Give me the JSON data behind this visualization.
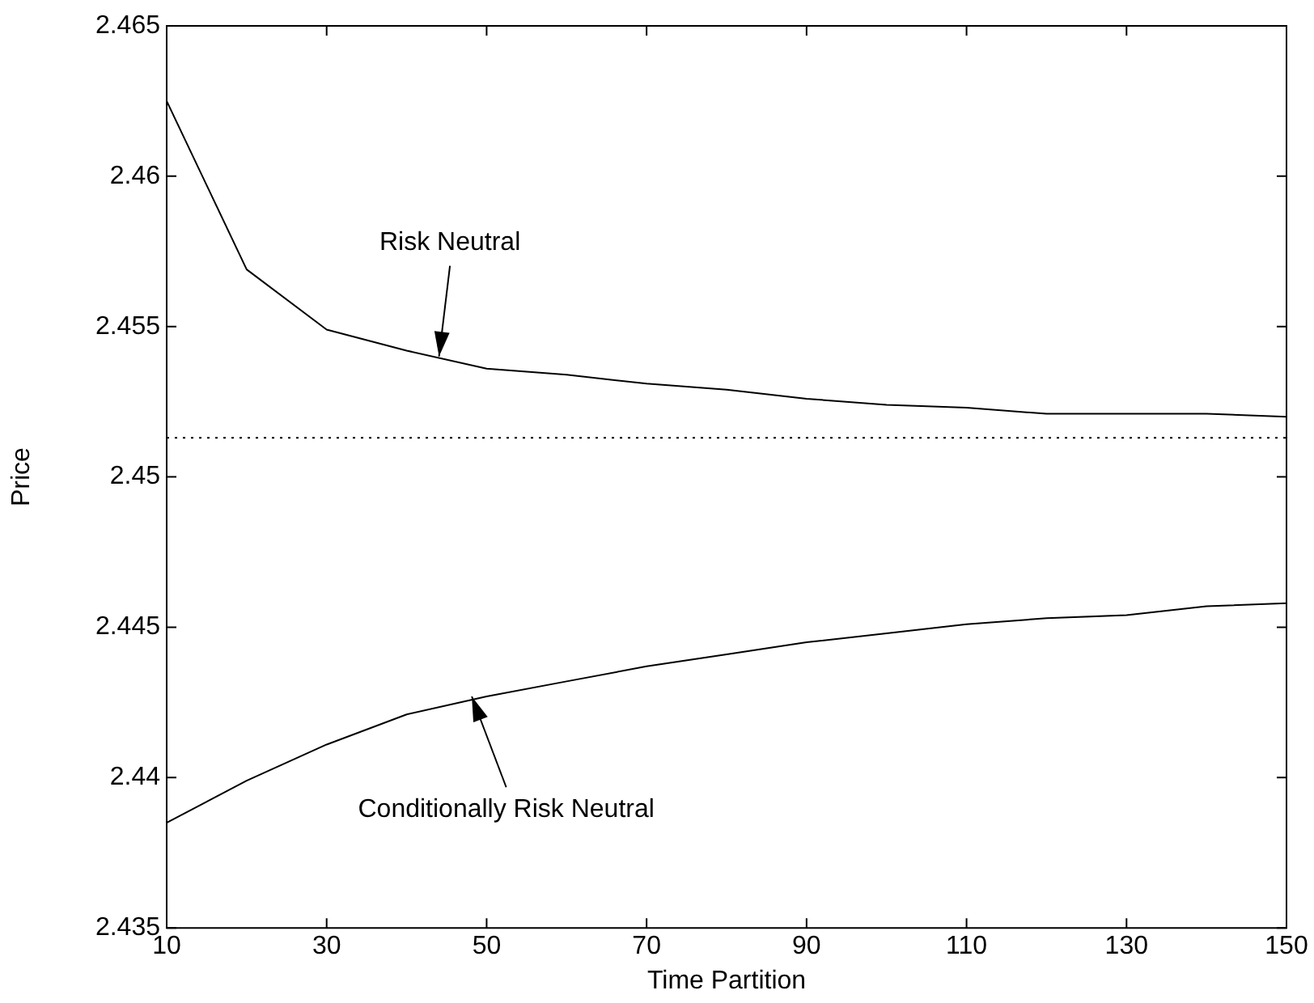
{
  "chart_data": {
    "type": "line",
    "xlabel": "Time Partition",
    "ylabel": "Price",
    "x": [
      10,
      20,
      30,
      40,
      50,
      60,
      70,
      80,
      90,
      100,
      110,
      120,
      130,
      140,
      150
    ],
    "series": [
      {
        "color": "#000000",
        "values": [
          2.4625,
          2.4569,
          2.4549,
          2.4542,
          2.4536,
          2.4534,
          2.4531,
          2.4529,
          2.4526,
          2.4524,
          2.4523,
          2.4521,
          2.4521,
          2.4521,
          2.452
        ]
      },
      {
        "color": "#000000",
        "values": [
          2.4385,
          2.4399,
          2.4411,
          2.4421,
          2.4427,
          2.4432,
          2.4437,
          2.4441,
          2.4445,
          2.4448,
          2.4451,
          2.4453,
          2.4454,
          2.4457,
          2.4458
        ]
      }
    ],
    "ref_lines": [
      {
        "axis": "y",
        "value": 2.4513,
        "color": "#000000",
        "line_style": "dotted"
      }
    ],
    "annotations": [
      {
        "text": "Risk Neutral",
        "x": 44,
        "y": 2.4539
      },
      {
        "text": "Conditionally Risk Neutral",
        "x": 48,
        "y": 2.4428
      }
    ],
    "xlim": [
      10,
      150
    ],
    "xticks": [
      10,
      30,
      50,
      70,
      90,
      110,
      130,
      150
    ],
    "ylim": [
      2.435,
      2.465
    ],
    "yticks": [
      2.435,
      2.44,
      2.445,
      2.45,
      2.455,
      2.46,
      2.465
    ],
    "grid": false,
    "legend": false,
    "marker": "none",
    "line_style": "solid"
  }
}
